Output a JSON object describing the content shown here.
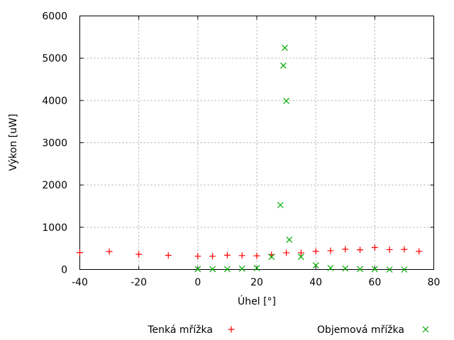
{
  "chart_data": {
    "type": "scatter",
    "title": "",
    "xlabel": "Úhel [°]",
    "ylabel": "Výkon [uW]",
    "xlim": [
      -40,
      80
    ],
    "ylim": [
      0,
      6000
    ],
    "xticks": [
      -40,
      -20,
      0,
      20,
      40,
      60,
      80
    ],
    "yticks": [
      0,
      1000,
      2000,
      3000,
      4000,
      5000,
      6000
    ],
    "grid": true,
    "grid_color": "#a8a8a8",
    "border_color": "#000000",
    "legend_position": "below-plot",
    "series": [
      {
        "name": "Tenká mřížka",
        "marker": "plus",
        "color": "#ff0000",
        "points": [
          [
            -40,
            400
          ],
          [
            -30,
            425
          ],
          [
            -20,
            360
          ],
          [
            -10,
            335
          ],
          [
            0,
            315
          ],
          [
            5,
            315
          ],
          [
            10,
            340
          ],
          [
            15,
            330
          ],
          [
            20,
            325
          ],
          [
            25,
            350
          ],
          [
            30,
            395
          ],
          [
            35,
            395
          ],
          [
            40,
            430
          ],
          [
            45,
            445
          ],
          [
            50,
            480
          ],
          [
            55,
            465
          ],
          [
            60,
            520
          ],
          [
            65,
            470
          ],
          [
            70,
            475
          ],
          [
            75,
            430
          ]
        ]
      },
      {
        "name": "Objemová mřížka",
        "marker": "cross",
        "color": "#00a800",
        "points": [
          [
            0,
            10
          ],
          [
            5,
            10
          ],
          [
            10,
            10
          ],
          [
            15,
            20
          ],
          [
            20,
            35
          ],
          [
            25,
            300
          ],
          [
            28,
            1525
          ],
          [
            29,
            4825
          ],
          [
            29.5,
            5245
          ],
          [
            30,
            3990
          ],
          [
            31,
            705
          ],
          [
            35,
            300
          ],
          [
            40,
            100
          ],
          [
            45,
            35
          ],
          [
            50,
            25
          ],
          [
            55,
            10
          ],
          [
            60,
            10
          ],
          [
            65,
            0
          ],
          [
            70,
            0
          ]
        ]
      }
    ]
  }
}
